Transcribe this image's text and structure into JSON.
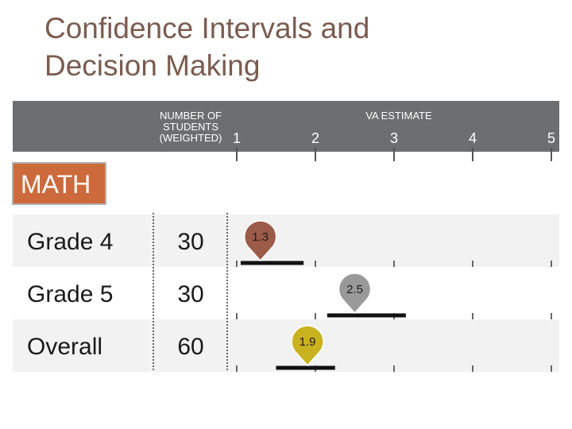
{
  "slide": {
    "title_line1": "Confidence Intervals and",
    "title_line2": "Decision Making"
  },
  "colors": {
    "title": "#7a5c4f",
    "header_band": "#6d6e71",
    "subject_badge": "#cc6a3c",
    "row_band": "#f2f2f2",
    "interval_line": "#111111",
    "grade4_marker": "#9c5a48",
    "grade5_marker": "#999999",
    "overall_marker": "#c9b21f"
  },
  "chart_data": {
    "type": "table",
    "subject": "MATH",
    "columns": {
      "students_header_lines": [
        "NUMBER OF",
        "STUDENTS",
        "(WEIGHTED)"
      ],
      "va_header": "VA ESTIMATE"
    },
    "x_axis": {
      "ticks": [
        1,
        2,
        3,
        4,
        5
      ],
      "xlim": [
        1,
        5
      ]
    },
    "rows": [
      {
        "label": "Grade 4",
        "students": 30,
        "estimate": 1.3,
        "ci": [
          1.05,
          1.85
        ],
        "marker_label": "1.3",
        "color": "#9c5a48"
      },
      {
        "label": "Grade 5",
        "students": 30,
        "estimate": 2.5,
        "ci": [
          2.15,
          3.15
        ],
        "marker_label": "2.5",
        "color": "#999999"
      },
      {
        "label": "Overall",
        "students": 60,
        "estimate": 1.9,
        "ci": [
          1.5,
          2.25
        ],
        "marker_label": "1.9",
        "color": "#c9b21f"
      }
    ]
  }
}
